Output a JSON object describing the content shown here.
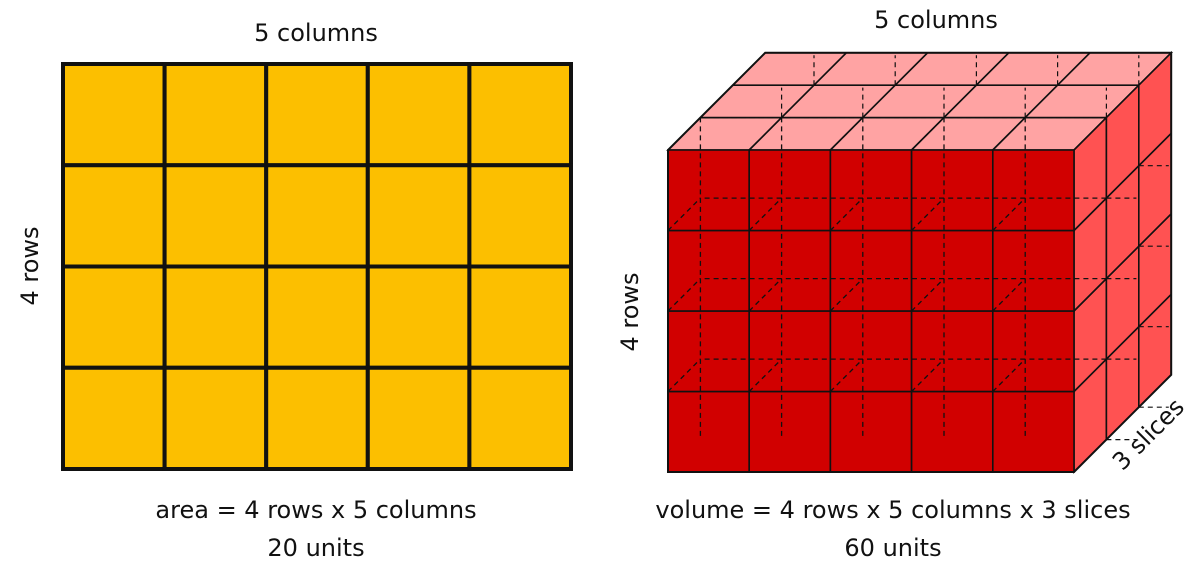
{
  "colors": {
    "area_fill": "#fcbf00",
    "cube_front": "#d10000",
    "cube_top": "#ffa3a3",
    "cube_side": "#ff5252",
    "stroke": "#111111"
  },
  "area_diagram": {
    "top_label": "5 columns",
    "side_label": "4 rows",
    "rows": 4,
    "columns": 5,
    "caption_line1": "area = 4 rows x 5 columns",
    "caption_line2": "20 units"
  },
  "volume_diagram": {
    "top_label": "5 columns",
    "side_label": "4 rows",
    "depth_label": "3 slices",
    "rows": 4,
    "columns": 5,
    "slices": 3,
    "caption_line1": "volume = 4 rows x 5 columns x 3 slices",
    "caption_line2": "60 units"
  }
}
